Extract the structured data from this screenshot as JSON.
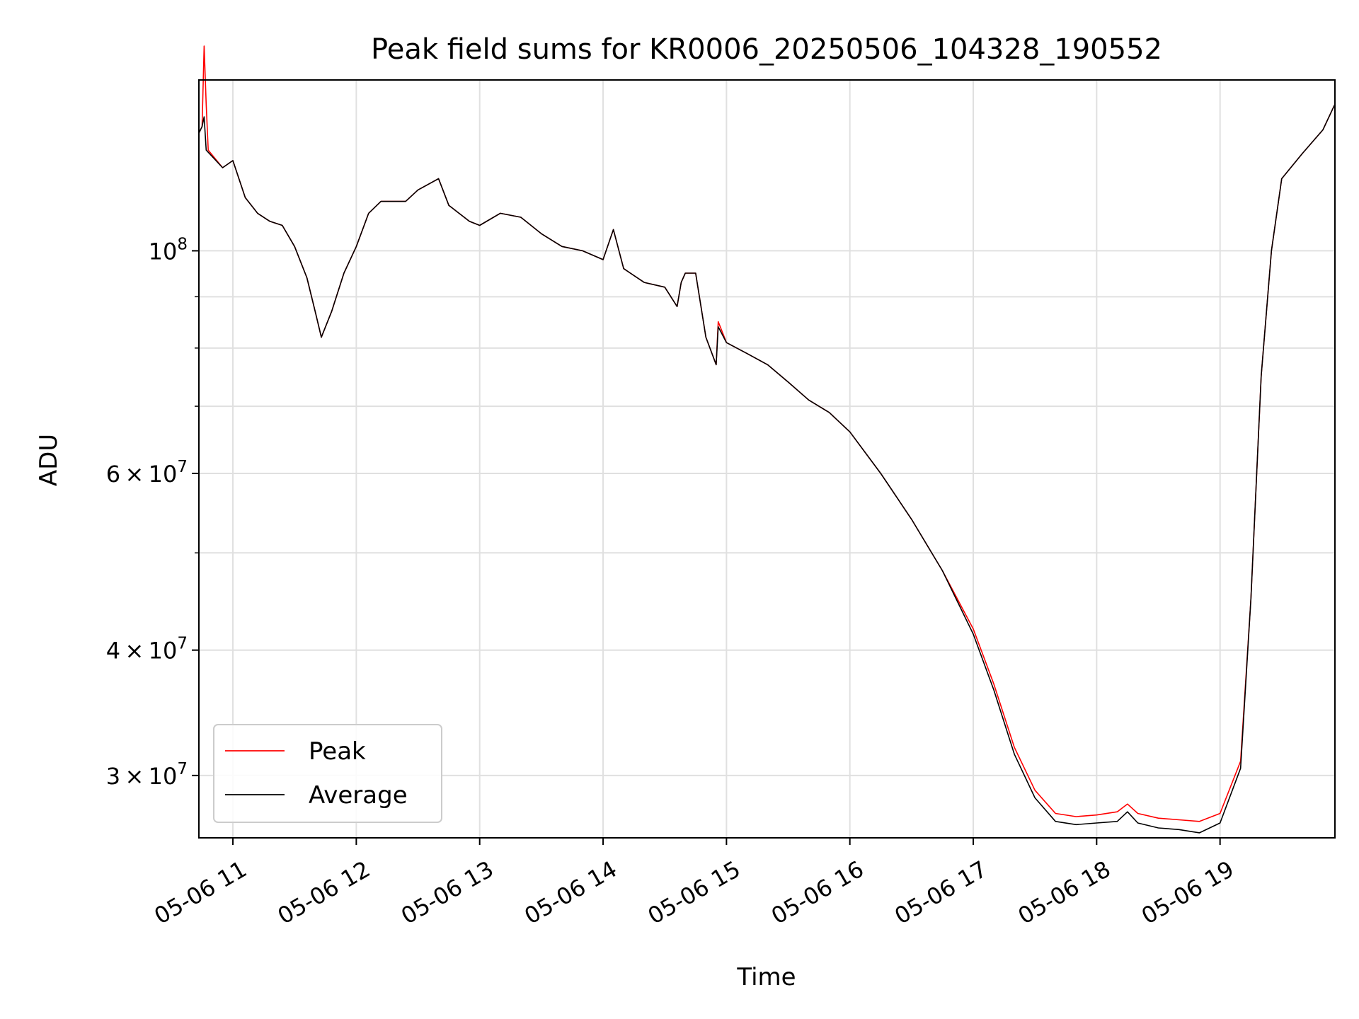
{
  "chart_data": {
    "type": "line",
    "title": "Peak field sums for KR0006_20250506_104328_190552",
    "xlabel": "Time",
    "ylabel": "ADU",
    "yscale": "log",
    "xlim": [
      "2025-05-06 10:43:28",
      "2025-05-06 19:55:52"
    ],
    "ylim": [
      26000000,
      148000000
    ],
    "grid": true,
    "legend_position": "lower left",
    "x_ticks": [
      {
        "value": "2025-05-06 11:00",
        "label": "05-06 11"
      },
      {
        "value": "2025-05-06 12:00",
        "label": "05-06 12"
      },
      {
        "value": "2025-05-06 13:00",
        "label": "05-06 13"
      },
      {
        "value": "2025-05-06 14:00",
        "label": "05-06 14"
      },
      {
        "value": "2025-05-06 15:00",
        "label": "05-06 15"
      },
      {
        "value": "2025-05-06 16:00",
        "label": "05-06 16"
      },
      {
        "value": "2025-05-06 17:00",
        "label": "05-06 17"
      },
      {
        "value": "2025-05-06 18:00",
        "label": "05-06 18"
      },
      {
        "value": "2025-05-06 19:00",
        "label": "05-06 19"
      }
    ],
    "y_major_ticks": [
      {
        "value": 30000000,
        "coef": "3",
        "exp": "7"
      },
      {
        "value": 40000000,
        "coef": "4",
        "exp": "7"
      },
      {
        "value": 60000000,
        "coef": "6",
        "exp": "7"
      },
      {
        "value": 100000000,
        "coef": "",
        "exp": "8"
      }
    ],
    "y_minor_ticks": [
      50000000,
      70000000,
      80000000,
      90000000
    ],
    "series": [
      {
        "name": "Peak",
        "color": "#ff0000",
        "points": [
          [
            "2025-05-06 10:43:28",
            131000000
          ],
          [
            "2025-05-06 10:45:00",
            133000000
          ],
          [
            "2025-05-06 10:46:00",
            160000000
          ],
          [
            "2025-05-06 10:47:00",
            140000000
          ],
          [
            "2025-05-06 10:48:00",
            126000000
          ],
          [
            "2025-05-06 10:55:00",
            121000000
          ],
          [
            "2025-05-06 11:00:00",
            123000000
          ],
          [
            "2025-05-06 11:06:00",
            113000000
          ],
          [
            "2025-05-06 11:12:00",
            109000000
          ],
          [
            "2025-05-06 11:18:00",
            107000000
          ],
          [
            "2025-05-06 11:24:00",
            106000000
          ],
          [
            "2025-05-06 11:30:00",
            101000000
          ],
          [
            "2025-05-06 11:36:00",
            94000000
          ],
          [
            "2025-05-06 11:40:00",
            87000000
          ],
          [
            "2025-05-06 11:43:00",
            82000000
          ],
          [
            "2025-05-06 11:48:00",
            87000000
          ],
          [
            "2025-05-06 11:54:00",
            95000000
          ],
          [
            "2025-05-06 12:00:00",
            101000000
          ],
          [
            "2025-05-06 12:06:00",
            109000000
          ],
          [
            "2025-05-06 12:12:00",
            112000000
          ],
          [
            "2025-05-06 12:24:00",
            112000000
          ],
          [
            "2025-05-06 12:30:00",
            115000000
          ],
          [
            "2025-05-06 12:40:00",
            118000000
          ],
          [
            "2025-05-06 12:45:00",
            111000000
          ],
          [
            "2025-05-06 12:55:00",
            107000000
          ],
          [
            "2025-05-06 13:00:00",
            106000000
          ],
          [
            "2025-05-06 13:10:00",
            109000000
          ],
          [
            "2025-05-06 13:20:00",
            108000000
          ],
          [
            "2025-05-06 13:30:00",
            104000000
          ],
          [
            "2025-05-06 13:40:00",
            101000000
          ],
          [
            "2025-05-06 13:50:00",
            100000000
          ],
          [
            "2025-05-06 14:00:00",
            98000000
          ],
          [
            "2025-05-06 14:05:00",
            105000000
          ],
          [
            "2025-05-06 14:10:00",
            96000000
          ],
          [
            "2025-05-06 14:20:00",
            93000000
          ],
          [
            "2025-05-06 14:30:00",
            92000000
          ],
          [
            "2025-05-06 14:36:00",
            88000000
          ],
          [
            "2025-05-06 14:38:00",
            93000000
          ],
          [
            "2025-05-06 14:40:00",
            95000000
          ],
          [
            "2025-05-06 14:45:00",
            95000000
          ],
          [
            "2025-05-06 14:50:00",
            82000000
          ],
          [
            "2025-05-06 14:55:00",
            77000000
          ],
          [
            "2025-05-06 14:56:00",
            85000000
          ],
          [
            "2025-05-06 15:00:00",
            81000000
          ],
          [
            "2025-05-06 15:10:00",
            79000000
          ],
          [
            "2025-05-06 15:20:00",
            77000000
          ],
          [
            "2025-05-06 15:30:00",
            74000000
          ],
          [
            "2025-05-06 15:40:00",
            71000000
          ],
          [
            "2025-05-06 15:50:00",
            69000000
          ],
          [
            "2025-05-06 16:00:00",
            66000000
          ],
          [
            "2025-05-06 16:15:00",
            60000000
          ],
          [
            "2025-05-06 16:30:00",
            54000000
          ],
          [
            "2025-05-06 16:45:00",
            48000000
          ],
          [
            "2025-05-06 17:00:00",
            42000000
          ],
          [
            "2025-05-06 17:10:00",
            37000000
          ],
          [
            "2025-05-06 17:20:00",
            32000000
          ],
          [
            "2025-05-06 17:30:00",
            29000000
          ],
          [
            "2025-05-06 17:40:00",
            27500000
          ],
          [
            "2025-05-06 17:50:00",
            27300000
          ],
          [
            "2025-05-06 18:00:00",
            27400000
          ],
          [
            "2025-05-06 18:10:00",
            27600000
          ],
          [
            "2025-05-06 18:15:00",
            28100000
          ],
          [
            "2025-05-06 18:20:00",
            27500000
          ],
          [
            "2025-05-06 18:30:00",
            27200000
          ],
          [
            "2025-05-06 18:40:00",
            27100000
          ],
          [
            "2025-05-06 18:50:00",
            27000000
          ],
          [
            "2025-05-06 19:00:00",
            27500000
          ],
          [
            "2025-05-06 19:10:00",
            31000000
          ],
          [
            "2025-05-06 19:15:00",
            45000000
          ],
          [
            "2025-05-06 19:20:00",
            75000000
          ],
          [
            "2025-05-06 19:25:00",
            100000000
          ],
          [
            "2025-05-06 19:30:00",
            118000000
          ],
          [
            "2025-05-06 19:40:00",
            125000000
          ],
          [
            "2025-05-06 19:50:00",
            132000000
          ],
          [
            "2025-05-06 19:55:52",
            140000000
          ]
        ]
      },
      {
        "name": "Average",
        "color": "#000000",
        "points": [
          [
            "2025-05-06 10:43:28",
            131000000
          ],
          [
            "2025-05-06 10:45:00",
            133000000
          ],
          [
            "2025-05-06 10:46:00",
            136000000
          ],
          [
            "2025-05-06 10:47:00",
            126000000
          ],
          [
            "2025-05-06 10:55:00",
            121000000
          ],
          [
            "2025-05-06 11:00:00",
            123000000
          ],
          [
            "2025-05-06 11:06:00",
            113000000
          ],
          [
            "2025-05-06 11:12:00",
            109000000
          ],
          [
            "2025-05-06 11:18:00",
            107000000
          ],
          [
            "2025-05-06 11:24:00",
            106000000
          ],
          [
            "2025-05-06 11:30:00",
            101000000
          ],
          [
            "2025-05-06 11:36:00",
            94000000
          ],
          [
            "2025-05-06 11:40:00",
            87000000
          ],
          [
            "2025-05-06 11:43:00",
            82000000
          ],
          [
            "2025-05-06 11:48:00",
            87000000
          ],
          [
            "2025-05-06 11:54:00",
            95000000
          ],
          [
            "2025-05-06 12:00:00",
            101000000
          ],
          [
            "2025-05-06 12:06:00",
            109000000
          ],
          [
            "2025-05-06 12:12:00",
            112000000
          ],
          [
            "2025-05-06 12:24:00",
            112000000
          ],
          [
            "2025-05-06 12:30:00",
            115000000
          ],
          [
            "2025-05-06 12:40:00",
            118000000
          ],
          [
            "2025-05-06 12:45:00",
            111000000
          ],
          [
            "2025-05-06 12:55:00",
            107000000
          ],
          [
            "2025-05-06 13:00:00",
            106000000
          ],
          [
            "2025-05-06 13:10:00",
            109000000
          ],
          [
            "2025-05-06 13:20:00",
            108000000
          ],
          [
            "2025-05-06 13:30:00",
            104000000
          ],
          [
            "2025-05-06 13:40:00",
            101000000
          ],
          [
            "2025-05-06 13:50:00",
            100000000
          ],
          [
            "2025-05-06 14:00:00",
            98000000
          ],
          [
            "2025-05-06 14:05:00",
            105000000
          ],
          [
            "2025-05-06 14:10:00",
            96000000
          ],
          [
            "2025-05-06 14:20:00",
            93000000
          ],
          [
            "2025-05-06 14:30:00",
            92000000
          ],
          [
            "2025-05-06 14:36:00",
            88000000
          ],
          [
            "2025-05-06 14:38:00",
            93000000
          ],
          [
            "2025-05-06 14:40:00",
            95000000
          ],
          [
            "2025-05-06 14:45:00",
            95000000
          ],
          [
            "2025-05-06 14:50:00",
            82000000
          ],
          [
            "2025-05-06 14:55:00",
            77000000
          ],
          [
            "2025-05-06 14:56:00",
            84000000
          ],
          [
            "2025-05-06 15:00:00",
            81000000
          ],
          [
            "2025-05-06 15:10:00",
            79000000
          ],
          [
            "2025-05-06 15:20:00",
            77000000
          ],
          [
            "2025-05-06 15:30:00",
            74000000
          ],
          [
            "2025-05-06 15:40:00",
            71000000
          ],
          [
            "2025-05-06 15:50:00",
            69000000
          ],
          [
            "2025-05-06 16:00:00",
            66000000
          ],
          [
            "2025-05-06 16:15:00",
            60000000
          ],
          [
            "2025-05-06 16:30:00",
            54000000
          ],
          [
            "2025-05-06 16:45:00",
            48000000
          ],
          [
            "2025-05-06 17:00:00",
            41500000
          ],
          [
            "2025-05-06 17:10:00",
            36500000
          ],
          [
            "2025-05-06 17:20:00",
            31500000
          ],
          [
            "2025-05-06 17:30:00",
            28500000
          ],
          [
            "2025-05-06 17:40:00",
            27000000
          ],
          [
            "2025-05-06 17:50:00",
            26800000
          ],
          [
            "2025-05-06 18:00:00",
            26900000
          ],
          [
            "2025-05-06 18:10:00",
            27000000
          ],
          [
            "2025-05-06 18:15:00",
            27600000
          ],
          [
            "2025-05-06 18:20:00",
            26900000
          ],
          [
            "2025-05-06 18:30:00",
            26600000
          ],
          [
            "2025-05-06 18:40:00",
            26500000
          ],
          [
            "2025-05-06 18:50:00",
            26300000
          ],
          [
            "2025-05-06 19:00:00",
            26900000
          ],
          [
            "2025-05-06 19:10:00",
            30500000
          ],
          [
            "2025-05-06 19:15:00",
            45000000
          ],
          [
            "2025-05-06 19:20:00",
            75000000
          ],
          [
            "2025-05-06 19:25:00",
            100000000
          ],
          [
            "2025-05-06 19:30:00",
            118000000
          ],
          [
            "2025-05-06 19:40:00",
            125000000
          ],
          [
            "2025-05-06 19:50:00",
            132000000
          ],
          [
            "2025-05-06 19:55:52",
            140000000
          ]
        ]
      }
    ]
  }
}
